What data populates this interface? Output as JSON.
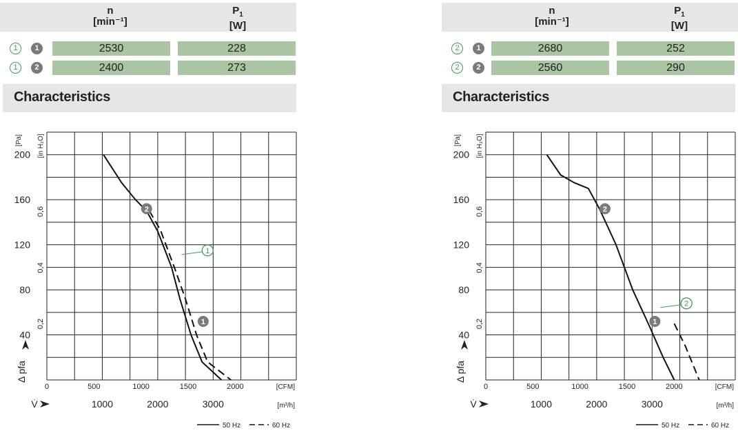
{
  "panels": [
    {
      "header": {
        "n_label": "n",
        "n_unit": "[min⁻¹]",
        "p_label": "P",
        "p_sub": "1",
        "p_unit": "[W]"
      },
      "rows": [
        {
          "circle": "1",
          "badge": "1",
          "n": "2530",
          "p": "228"
        },
        {
          "circle": "1",
          "badge": "2",
          "n": "2400",
          "p": "273"
        }
      ],
      "section_title": "Characteristics"
    },
    {
      "header": {
        "n_label": "n",
        "n_unit": "[min⁻¹]",
        "p_label": "P",
        "p_sub": "1",
        "p_unit": "[W]"
      },
      "rows": [
        {
          "circle": "2",
          "badge": "1",
          "n": "2680",
          "p": "252"
        },
        {
          "circle": "2",
          "badge": "2",
          "n": "2560",
          "p": "290"
        }
      ],
      "section_title": "Characteristics"
    }
  ],
  "chart_data": [
    {
      "type": "line",
      "x_unit": "[m³/h]",
      "x_unit_alt": "[CFM]",
      "y_unit": "[Pa]",
      "y_unit_alt": "[in H₂O]",
      "ylabel": "Δ pfa",
      "xlabel": "V̇",
      "xlim": [
        0,
        4500
      ],
      "ylim": [
        0,
        220
      ],
      "x_ticks": [
        1000,
        2000,
        3000
      ],
      "x_ticks_alt": [
        0,
        500,
        1000,
        1500,
        2000
      ],
      "y_ticks": [
        40,
        80,
        120,
        160,
        200
      ],
      "y_ticks_alt": [
        "0,2",
        "0,4",
        "0,6"
      ],
      "grid": true,
      "legend": [
        {
          "label": "50 Hz",
          "style": "solid"
        },
        {
          "label": "60 Hz",
          "style": "dashed"
        }
      ],
      "series": [
        {
          "name": "50 Hz",
          "style": "solid",
          "points": [
            [
              1020,
              200
            ],
            [
              1350,
              175
            ],
            [
              1600,
              160
            ],
            [
              1800,
              150
            ],
            [
              2000,
              132
            ],
            [
              2250,
              100
            ],
            [
              2400,
              72
            ],
            [
              2600,
              40
            ],
            [
              2800,
              16
            ],
            [
              3150,
              0
            ]
          ]
        },
        {
          "name": "60 Hz",
          "style": "dashed",
          "points": [
            [
              1850,
              150
            ],
            [
              2050,
              133
            ],
            [
              2300,
              100
            ],
            [
              2500,
              72
            ],
            [
              2700,
              40
            ],
            [
              2900,
              16
            ],
            [
              3320,
              0
            ]
          ]
        }
      ],
      "annotations": [
        {
          "label": "2",
          "kind": "filled",
          "x": 1800,
          "y": 152
        },
        {
          "label": "1",
          "kind": "filled",
          "x": 2820,
          "y": 52
        },
        {
          "label": "1",
          "kind": "outline",
          "x": 2900,
          "y": 115
        }
      ]
    },
    {
      "type": "line",
      "x_unit": "[m³/h]",
      "x_unit_alt": "[CFM]",
      "y_unit": "[Pa]",
      "y_unit_alt": "[in H₂O]",
      "ylabel": "Δ pfa",
      "xlabel": "V̇",
      "xlim": [
        0,
        4500
      ],
      "ylim": [
        0,
        220
      ],
      "x_ticks": [
        1000,
        2000,
        3000
      ],
      "x_ticks_alt": [
        0,
        500,
        1000,
        1500,
        2000
      ],
      "y_ticks": [
        40,
        80,
        120,
        160,
        200
      ],
      "y_ticks_alt": [
        "0,2",
        "0,4",
        "0,6"
      ],
      "grid": true,
      "legend": [
        {
          "label": "50 Hz",
          "style": "solid"
        },
        {
          "label": "60 Hz",
          "style": "dashed"
        }
      ],
      "series": [
        {
          "name": "50 Hz",
          "style": "solid",
          "points": [
            [
              1100,
              200
            ],
            [
              1350,
              182
            ],
            [
              1600,
              175
            ],
            [
              1850,
              170
            ],
            [
              2050,
              152
            ],
            [
              2350,
              120
            ],
            [
              2650,
              80
            ],
            [
              2950,
              48
            ],
            [
              3200,
              20
            ],
            [
              3400,
              0
            ]
          ]
        },
        {
          "name": "60 Hz",
          "style": "dashed",
          "points": [
            [
              3400,
              50
            ],
            [
              3600,
              30
            ],
            [
              3850,
              0
            ]
          ]
        }
      ],
      "annotations": [
        {
          "label": "2",
          "kind": "filled",
          "x": 2150,
          "y": 152
        },
        {
          "label": "1",
          "kind": "filled",
          "x": 3050,
          "y": 52
        },
        {
          "label": "2",
          "kind": "outline",
          "x": 3620,
          "y": 68
        }
      ]
    }
  ]
}
